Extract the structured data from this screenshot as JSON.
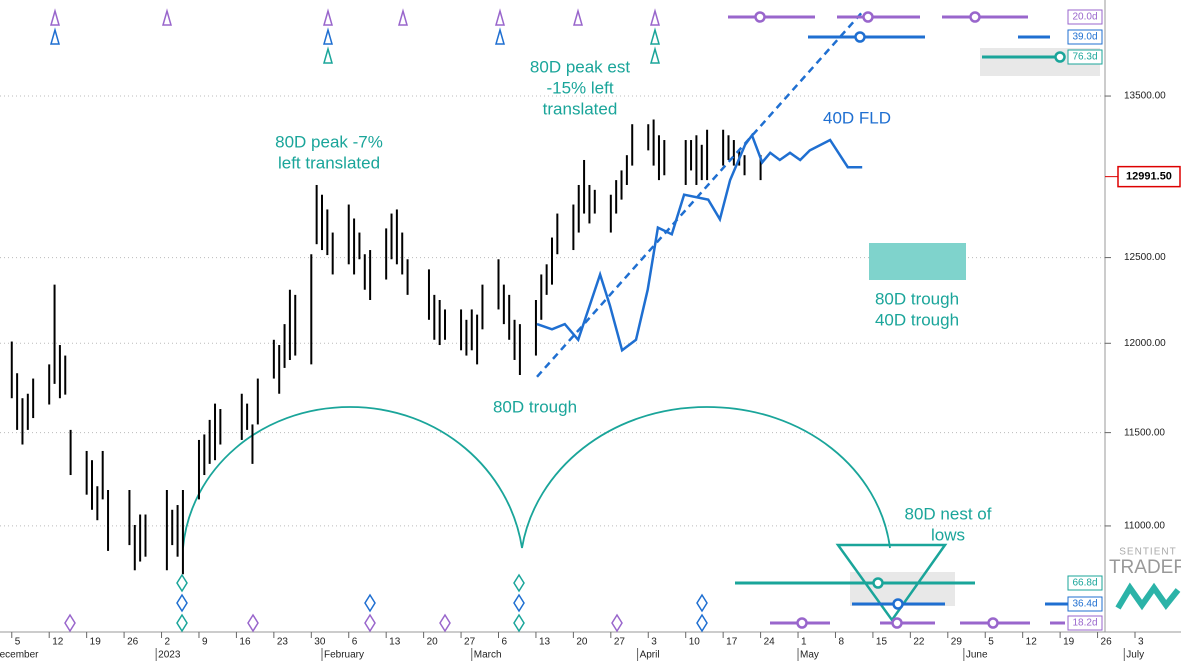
{
  "chart_data": {
    "type": "ohlc",
    "log_scale": true,
    "grid": true,
    "ylim": [
      10458,
      14132
    ],
    "yticks": [
      {
        "value": 11000,
        "label": "11000.00"
      },
      {
        "value": 11500,
        "label": "11500.00"
      },
      {
        "value": 12000,
        "label": "12000.00"
      },
      {
        "value": 12500,
        "label": "12500.00"
      },
      {
        "value": 13500,
        "label": "13500.00"
      }
    ],
    "xlim": [
      -2.2,
      218.6
    ],
    "xticks": [
      {
        "value": 0,
        "label": "5"
      },
      {
        "value": 7,
        "label": "12"
      },
      {
        "value": 14,
        "label": "19"
      },
      {
        "value": 21,
        "label": "26"
      },
      {
        "value": 28,
        "label": "2"
      },
      {
        "value": 35,
        "label": "9"
      },
      {
        "value": 42,
        "label": "16"
      },
      {
        "value": 49,
        "label": "23"
      },
      {
        "value": 56,
        "label": "30"
      },
      {
        "value": 63,
        "label": "6"
      },
      {
        "value": 70,
        "label": "13"
      },
      {
        "value": 77,
        "label": "20"
      },
      {
        "value": 84,
        "label": "27"
      },
      {
        "value": 91,
        "label": "6"
      },
      {
        "value": 98,
        "label": "13"
      },
      {
        "value": 105,
        "label": "20"
      },
      {
        "value": 112,
        "label": "27"
      },
      {
        "value": 119,
        "label": "3"
      },
      {
        "value": 126,
        "label": "10"
      },
      {
        "value": 133,
        "label": "17"
      },
      {
        "value": 140,
        "label": "24"
      },
      {
        "value": 147,
        "label": "1"
      },
      {
        "value": 154,
        "label": "8"
      },
      {
        "value": 161,
        "label": "15"
      },
      {
        "value": 168,
        "label": "22"
      },
      {
        "value": 175,
        "label": "29"
      },
      {
        "value": 182,
        "label": "5"
      },
      {
        "value": 189,
        "label": "12"
      },
      {
        "value": 196,
        "label": "19"
      },
      {
        "value": 203,
        "label": "26"
      },
      {
        "value": 210,
        "label": "3"
      }
    ],
    "month_ticks": [
      {
        "value": -4,
        "label": "December"
      },
      {
        "value": 27,
        "label": "2023"
      },
      {
        "value": 58,
        "label": "February"
      },
      {
        "value": 86,
        "label": "March"
      },
      {
        "value": 117,
        "label": "April"
      },
      {
        "value": 147,
        "label": "May"
      },
      {
        "value": 178,
        "label": "June"
      },
      {
        "value": 208,
        "label": "July"
      }
    ],
    "bars": {
      "color": "#000000",
      "x": [
        0,
        1,
        2,
        3,
        4,
        7,
        8,
        9,
        10,
        11,
        14,
        15,
        16,
        17,
        18,
        22,
        23,
        24,
        25,
        29,
        30,
        31,
        32,
        35,
        36,
        37,
        38,
        39,
        43,
        44,
        45,
        46,
        49,
        50,
        51,
        52,
        53,
        56,
        57,
        58,
        59,
        60,
        63,
        64,
        65,
        66,
        67,
        70,
        71,
        72,
        73,
        74,
        78,
        79,
        80,
        81,
        84,
        85,
        86,
        87,
        88,
        91,
        92,
        93,
        94,
        95,
        98,
        99,
        100,
        101,
        102,
        105,
        106,
        107,
        108,
        109,
        112,
        113,
        114,
        115,
        116,
        119,
        120,
        121,
        122,
        126,
        127,
        128,
        129,
        130,
        133,
        134,
        135,
        136,
        137,
        140
      ],
      "high": [
        12010,
        11830,
        11690,
        11715,
        11800,
        11880,
        12340,
        11990,
        11930,
        11515,
        11400,
        11350,
        11210,
        11400,
        11190,
        11190,
        11005,
        11060,
        11060,
        11190,
        11085,
        11110,
        11190,
        11460,
        11490,
        11570,
        11660,
        11630,
        11715,
        11660,
        11545,
        11800,
        12020,
        11990,
        12110,
        12310,
        12280,
        12520,
        12940,
        12880,
        12790,
        12650,
        12820,
        12735,
        12650,
        12520,
        12545,
        12675,
        12765,
        12790,
        12650,
        12490,
        12430,
        12280,
        12250,
        12195,
        12195,
        12135,
        12195,
        12165,
        12340,
        12490,
        12340,
        12280,
        12135,
        12110,
        12250,
        12400,
        12460,
        12620,
        12765,
        12820,
        12940,
        13095,
        12940,
        12910,
        12880,
        12970,
        13030,
        13125,
        13320,
        13320,
        13350,
        13250,
        13220,
        13220,
        13220,
        13250,
        13190,
        13285,
        13285,
        13250,
        13220,
        13155,
        13125,
        13125
      ],
      "low": [
        11690,
        11515,
        11435,
        11515,
        11580,
        11655,
        11770,
        11690,
        11710,
        11270,
        11165,
        11085,
        11030,
        11140,
        10870,
        10900,
        10770,
        10815,
        10840,
        10770,
        10900,
        10840,
        10750,
        11140,
        11270,
        11330,
        11350,
        11435,
        11460,
        11515,
        11330,
        11545,
        11800,
        11715,
        11860,
        11905,
        11930,
        11880,
        12580,
        12545,
        12515,
        12400,
        12460,
        12400,
        12490,
        12310,
        12250,
        12370,
        12490,
        12460,
        12400,
        12280,
        12135,
        12020,
        11990,
        12020,
        11960,
        11930,
        11960,
        11880,
        12080,
        12195,
        12110,
        12020,
        11905,
        11820,
        11930,
        12135,
        12280,
        12340,
        12520,
        12545,
        12650,
        12765,
        12705,
        12765,
        12650,
        12765,
        12850,
        12940,
        13060,
        13155,
        13060,
        12970,
        13000,
        12940,
        13030,
        12940,
        12970,
        12970,
        13060,
        13095,
        13060,
        13060,
        13000,
        12970
      ]
    },
    "fld": {
      "color": "#1f6fd1",
      "x": [
        98.2,
        101,
        103.4,
        105.9,
        110,
        111.8,
        114.1,
        116.7,
        118.9,
        120.8,
        123.4,
        125.7,
        130.2,
        132.4,
        134.3,
        137.1,
        138.4,
        140.3,
        141.8,
        143.6,
        145.5,
        147.4,
        149.2,
        153,
        156.3,
        159
      ],
      "values": [
        12110,
        12080,
        12110,
        12020,
        12400,
        12220,
        11960,
        12020,
        12310,
        12680,
        12640,
        12880,
        12850,
        12730,
        12970,
        13190,
        13250,
        13080,
        13140,
        13095,
        13140,
        13095,
        13155,
        13220,
        13050,
        13050
      ]
    },
    "trend_line": {
      "color": "#1f6fd1",
      "x": [
        98.2,
        159
      ],
      "values": [
        11810,
        14051
      ]
    },
    "last_price": {
      "value": 12991.5,
      "label": "12991.50"
    },
    "annotations": [
      {
        "lines": [
          "80D peak -7%",
          "left translated"
        ]
      },
      {
        "lines": [
          "80D peak est",
          "-15% left",
          "translated"
        ]
      },
      {
        "lines": [
          "40D FLD"
        ]
      },
      {
        "lines": [
          "80D trough"
        ]
      },
      {
        "lines": [
          "80D trough",
          "40D trough"
        ]
      },
      {
        "lines": [
          "80D nest of",
          "lows"
        ]
      }
    ],
    "cycle_labels": [
      "20.0d",
      "39.0d",
      "76.3d",
      "66.8d",
      "36.4d",
      "18.2d"
    ],
    "logo": [
      "SENTIENT",
      "TRADER"
    ]
  }
}
